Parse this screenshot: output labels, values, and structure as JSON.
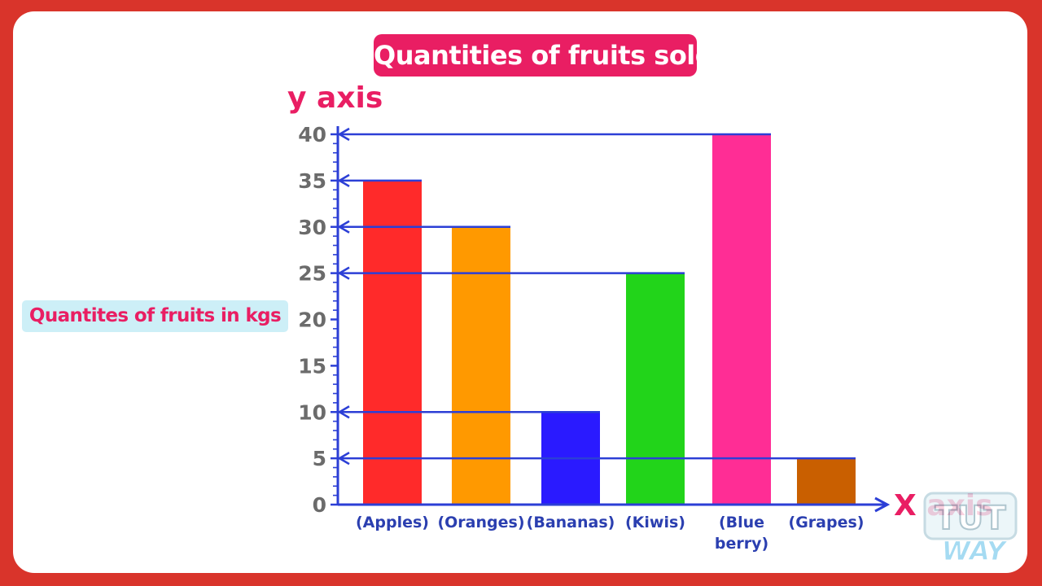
{
  "chart_data": {
    "type": "bar",
    "title": "Quantities of fruits sold",
    "categories": [
      "(Apples)",
      "(Oranges)",
      "(Bananas)",
      "(Kiwis)",
      "(Blue berry)",
      "(Grapes)"
    ],
    "category_lines": [
      [
        "(Apples)"
      ],
      [
        "(Oranges)"
      ],
      [
        "(Bananas)"
      ],
      [
        "(Kiwis)"
      ],
      [
        "(Blue",
        "berry)"
      ],
      [
        "(Grapes)"
      ]
    ],
    "values": [
      35,
      30,
      10,
      25,
      40,
      5
    ],
    "colors": [
      "#ff2a2a",
      "#ff9900",
      "#2a1aff",
      "#22d41a",
      "#ff2d95",
      "#c95f00"
    ],
    "ylabel": "Quantites of  fruits in kgs",
    "y_axis_name": "y axis",
    "x_axis_name": "X axis",
    "ylim": [
      0,
      40
    ],
    "yticks": [
      0,
      5,
      10,
      15,
      20,
      25,
      30,
      35,
      40
    ],
    "grid": false,
    "reference_lines": true
  },
  "logo": {
    "text": "TUT WAY"
  }
}
